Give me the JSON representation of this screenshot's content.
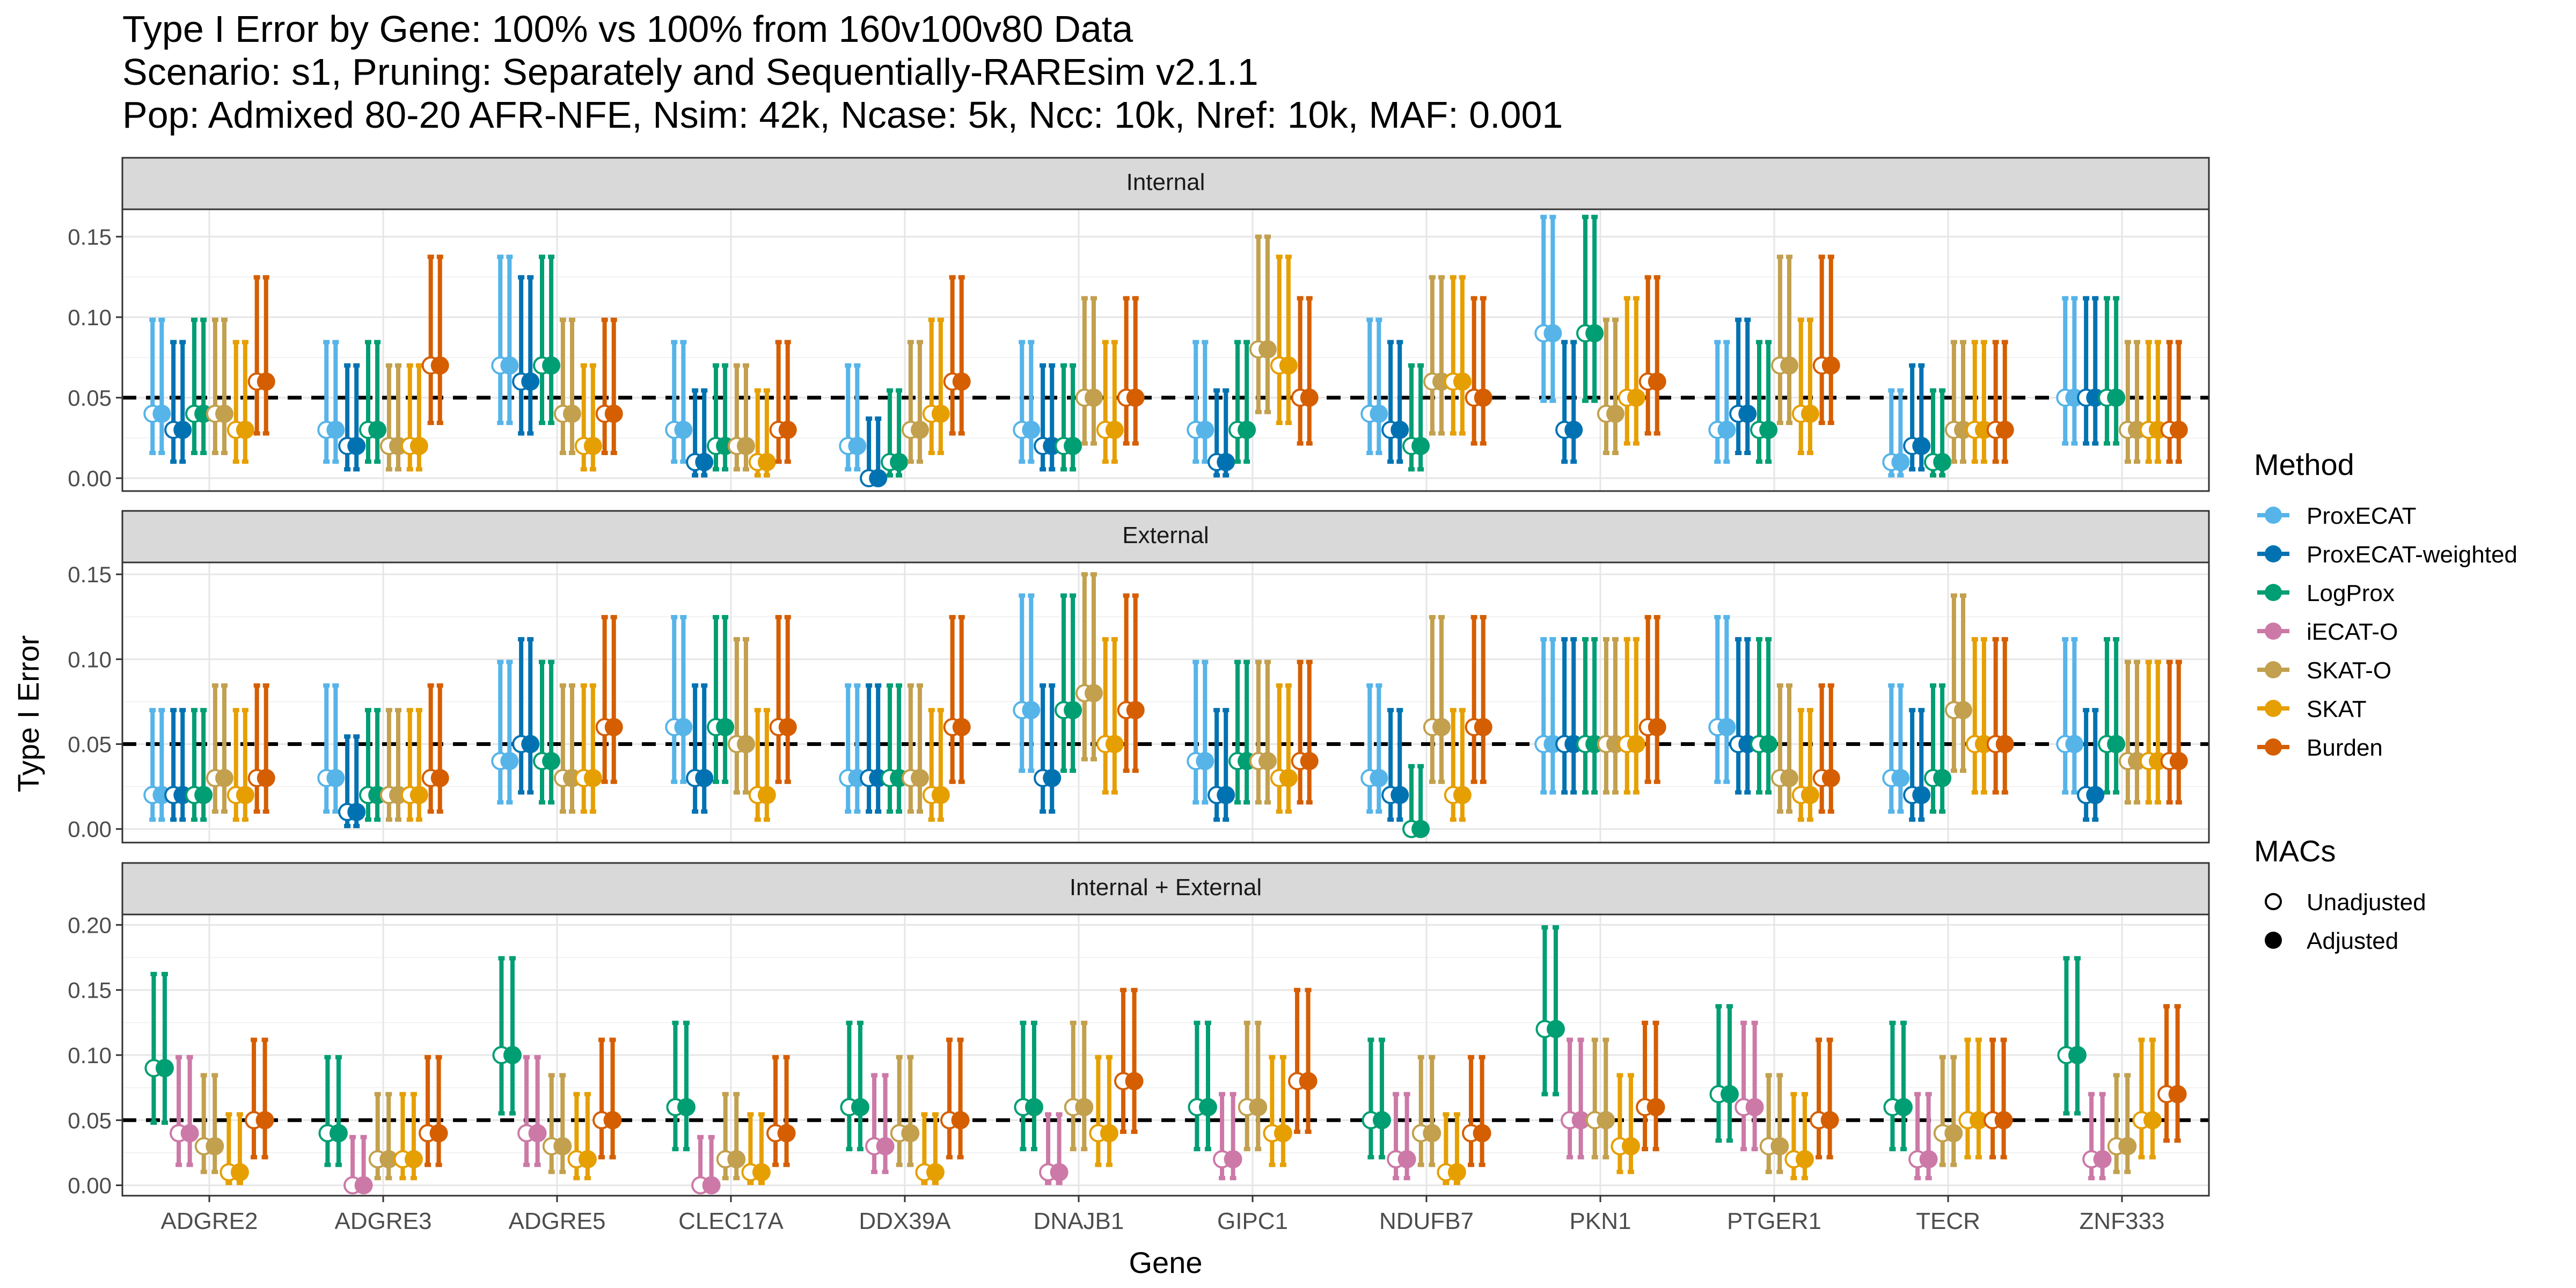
{
  "chart_data": {
    "type": "errorbar-dot",
    "title": [
      "Type I Error by Gene: 100% vs 100% from 160v100v80 Data",
      "Scenario: s1, Pruning: Separately and Sequentially-RAREsim v2.1.1",
      "Pop: Admixed 80-20 AFR-NFE, Nsim: 42k, Ncase: 5k, Ncc: 10k, Nref: 10k, MAF: 0.001"
    ],
    "xlabel": "Gene",
    "ylabel": "Type I Error",
    "reference_line": 0.05,
    "genes": [
      "ADGRE2",
      "ADGRE3",
      "ADGRE5",
      "CLEC17A",
      "DDX39A",
      "DNAJB1",
      "GIPC1",
      "NDUFB7",
      "PKN1",
      "PTGER1",
      "TECR",
      "ZNF333"
    ],
    "legend_method": {
      "title": "Method",
      "entries": [
        {
          "name": "ProxECAT",
          "color": "#56B4E9"
        },
        {
          "name": "ProxECAT-weighted",
          "color": "#0072B2"
        },
        {
          "name": "LogProx",
          "color": "#009E73"
        },
        {
          "name": "iECAT-O",
          "color": "#CC79A7"
        },
        {
          "name": "SKAT-O",
          "color": "#C2A04E"
        },
        {
          "name": "SKAT",
          "color": "#E69F00"
        },
        {
          "name": "Burden",
          "color": "#D55E00"
        }
      ]
    },
    "legend_macs": {
      "title": "MACs",
      "entries": [
        {
          "name": "Unadjusted",
          "style": "open"
        },
        {
          "name": "Adjusted",
          "style": "filled"
        }
      ]
    },
    "panels": [
      {
        "name": "Internal",
        "ylim": [
          -0.008,
          0.167
        ],
        "yticks": [
          "0.00",
          "0.05",
          "0.10",
          "0.15"
        ],
        "methods": [
          "ProxECAT",
          "ProxECAT-weighted",
          "LogProx",
          "SKAT-O",
          "SKAT",
          "Burden"
        ],
        "values": [
          [
            0.04,
            0.03,
            0.04,
            0.04,
            0.03,
            0.06
          ],
          [
            0.03,
            0.02,
            0.03,
            0.02,
            0.02,
            0.07
          ],
          [
            0.07,
            0.06,
            0.07,
            0.04,
            0.02,
            0.04
          ],
          [
            0.03,
            0.01,
            0.02,
            0.02,
            0.01,
            0.03
          ],
          [
            0.02,
            0.0,
            0.01,
            0.03,
            0.04,
            0.06
          ],
          [
            0.03,
            0.02,
            0.02,
            0.05,
            0.03,
            0.05
          ],
          [
            0.03,
            0.01,
            0.03,
            0.08,
            0.07,
            0.05
          ],
          [
            0.04,
            0.03,
            0.02,
            0.06,
            0.06,
            0.05
          ],
          [
            0.09,
            0.03,
            0.09,
            0.04,
            0.05,
            0.06
          ],
          [
            0.03,
            0.04,
            0.03,
            0.07,
            0.04,
            0.07
          ],
          [
            0.01,
            0.02,
            0.01,
            0.03,
            0.03,
            0.03
          ],
          [
            0.05,
            0.05,
            0.05,
            0.03,
            0.03,
            0.03
          ]
        ]
      },
      {
        "name": "External",
        "ylim": [
          -0.008,
          0.157
        ],
        "yticks": [
          "0.00",
          "0.05",
          "0.10",
          "0.15"
        ],
        "methods": [
          "ProxECAT",
          "ProxECAT-weighted",
          "LogProx",
          "SKAT-O",
          "SKAT",
          "Burden"
        ],
        "values": [
          [
            0.02,
            0.02,
            0.02,
            0.03,
            0.02,
            0.03
          ],
          [
            0.03,
            0.01,
            0.02,
            0.02,
            0.02,
            0.03
          ],
          [
            0.04,
            0.05,
            0.04,
            0.03,
            0.03,
            0.06
          ],
          [
            0.06,
            0.03,
            0.06,
            0.05,
            0.02,
            0.06
          ],
          [
            0.03,
            0.03,
            0.03,
            0.03,
            0.02,
            0.06
          ],
          [
            0.07,
            0.03,
            0.07,
            0.08,
            0.05,
            0.07
          ],
          [
            0.04,
            0.02,
            0.04,
            0.04,
            0.03,
            0.04
          ],
          [
            0.03,
            0.02,
            0.0,
            0.06,
            0.02,
            0.06
          ],
          [
            0.05,
            0.05,
            0.05,
            0.05,
            0.05,
            0.06
          ],
          [
            0.06,
            0.05,
            0.05,
            0.03,
            0.02,
            0.03
          ],
          [
            0.03,
            0.02,
            0.03,
            0.07,
            0.05,
            0.05
          ],
          [
            0.05,
            0.02,
            0.05,
            0.04,
            0.04,
            0.04
          ]
        ]
      },
      {
        "name": "Internal + External",
        "ylim": [
          -0.008,
          0.208
        ],
        "yticks": [
          "0.00",
          "0.05",
          "0.10",
          "0.15",
          "0.20"
        ],
        "methods": [
          "LogProx",
          "iECAT-O",
          "SKAT-O",
          "SKAT",
          "Burden"
        ],
        "values": [
          [
            0.09,
            0.04,
            0.03,
            0.01,
            0.05
          ],
          [
            0.04,
            0.0,
            0.02,
            0.02,
            0.04
          ],
          [
            0.1,
            0.04,
            0.03,
            0.02,
            0.05
          ],
          [
            0.06,
            0.0,
            0.02,
            0.01,
            0.04
          ],
          [
            0.06,
            0.03,
            0.04,
            0.01,
            0.05
          ],
          [
            0.06,
            0.01,
            0.06,
            0.04,
            0.08
          ],
          [
            0.06,
            0.02,
            0.06,
            0.04,
            0.08
          ],
          [
            0.05,
            0.02,
            0.04,
            0.01,
            0.04
          ],
          [
            0.12,
            0.05,
            0.05,
            0.03,
            0.06
          ],
          [
            0.07,
            0.06,
            0.03,
            0.02,
            0.05
          ],
          [
            0.06,
            0.02,
            0.04,
            0.05,
            0.05
          ],
          [
            0.1,
            0.02,
            0.03,
            0.05,
            0.07
          ]
        ]
      }
    ]
  }
}
